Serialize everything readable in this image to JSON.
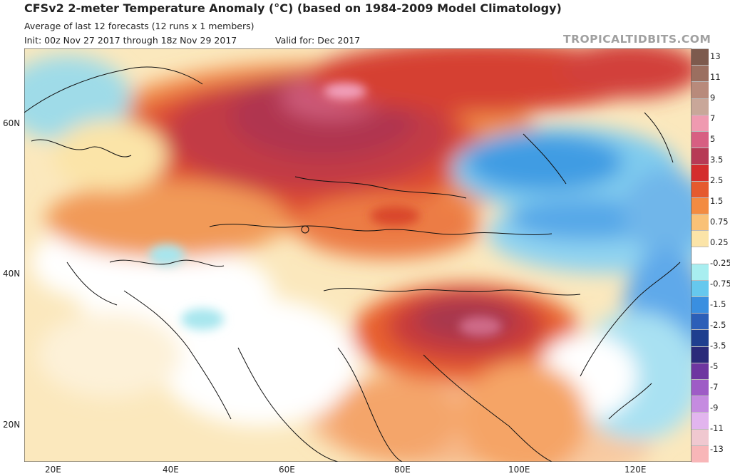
{
  "header": {
    "title": "CFSv2 2-meter Temperature Anomaly (°C) (based on 1984-2009 Model Climatology)",
    "subtitle": "Average of last 12 forecasts (12 runs x 1 members)",
    "init": "Init: 00z Nov 27 2017 through 18z Nov 29 2017",
    "valid": "Valid for: Dec 2017",
    "brand": "TROPICALTIDBITS.COM"
  },
  "map": {
    "lat_labels": [
      "60N",
      "40N",
      "20N"
    ],
    "lon_labels": [
      "20E",
      "40E",
      "60E",
      "80E",
      "100E",
      "120E"
    ],
    "region": "Europe and Asia",
    "highlight_regions": [
      "warm anomaly over Russia and the Tibetan Plateau",
      "cold anomaly over eastern Siberia, Mongolia and Korea"
    ]
  },
  "colorbar": {
    "labels": [
      "13",
      "11",
      "9",
      "7",
      "5",
      "3.5",
      "2.5",
      "1.5",
      "0.75",
      "0.25",
      "-0.25",
      "-0.75",
      "-1.5",
      "-2.5",
      "-3.5",
      "-5",
      "-7",
      "-9",
      "-11",
      "-13"
    ],
    "colors": [
      "#7d5a4d",
      "#9b6f60",
      "#b88a7b",
      "#c9a799",
      "#ef9ab0",
      "#d75f82",
      "#b73a55",
      "#d42d2d",
      "#e55a2e",
      "#f38b41",
      "#f9c177",
      "#fbe4a8",
      "#ffffff",
      "#a8eef0",
      "#66c8ee",
      "#3a8fe0",
      "#2c5fb8",
      "#1f3f8f",
      "#2a2a7a",
      "#6e36a0",
      "#9e5cc6",
      "#c58be0",
      "#e2b5ee",
      "#f0c8d0",
      "#f8b6b8"
    ]
  }
}
